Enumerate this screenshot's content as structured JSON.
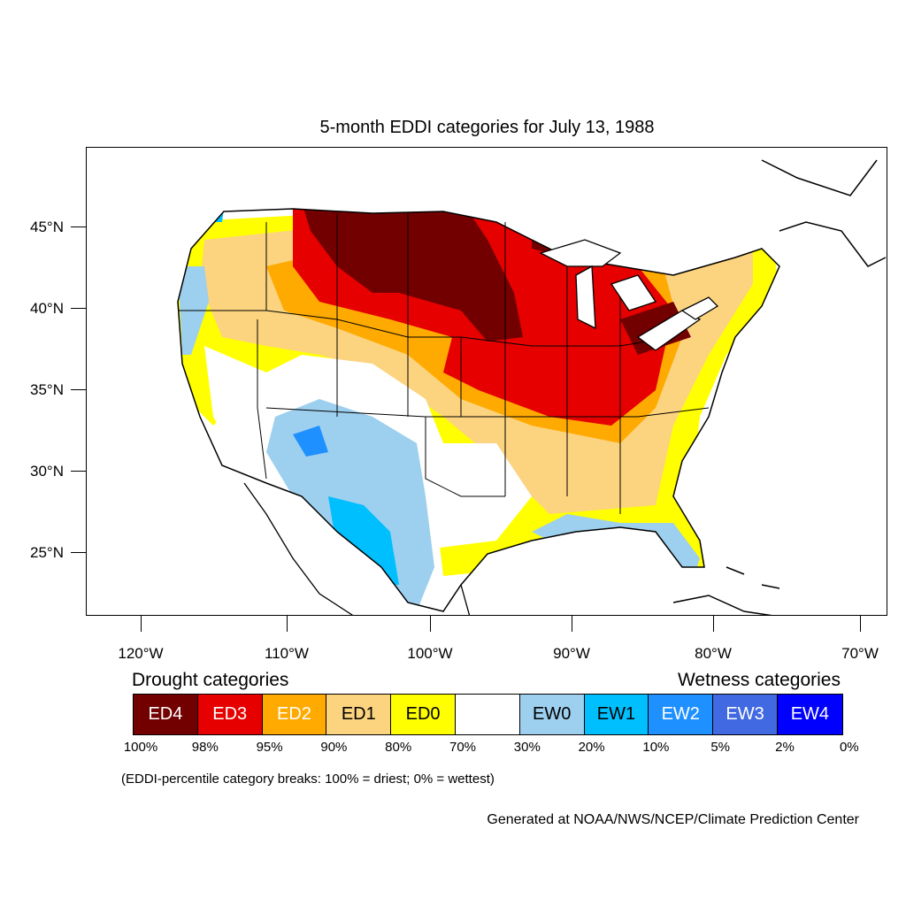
{
  "title": "5-month EDDI categories for July 13, 1988",
  "map": {
    "lat_labels": [
      "45°N",
      "40°N",
      "35°N",
      "30°N",
      "25°N"
    ],
    "lon_labels": [
      "120°W",
      "110°W",
      "100°W",
      "90°W",
      "80°W",
      "70°W"
    ],
    "region": "Contiguous United States"
  },
  "legend": {
    "drought_heading": "Drought categories",
    "wetness_heading": "Wetness categories",
    "categories": [
      {
        "label": "ED4",
        "color": "#730000",
        "text_color": "#ffffff"
      },
      {
        "label": "ED3",
        "color": "#e60000",
        "text_color": "#ffffff"
      },
      {
        "label": "ED2",
        "color": "#ffaa00",
        "text_color": "#ffffff"
      },
      {
        "label": "ED1",
        "color": "#fcd37f",
        "text_color": "#000000"
      },
      {
        "label": "ED0",
        "color": "#ffff00",
        "text_color": "#000000"
      },
      {
        "label": "",
        "color": "#ffffff",
        "text_color": "#000000"
      },
      {
        "label": "EW0",
        "color": "#9dcfee",
        "text_color": "#000000"
      },
      {
        "label": "EW1",
        "color": "#00bfff",
        "text_color": "#000000"
      },
      {
        "label": "EW2",
        "color": "#1e90ff",
        "text_color": "#ffffff"
      },
      {
        "label": "EW3",
        "color": "#4169e1",
        "text_color": "#ffffff"
      },
      {
        "label": "EW4",
        "color": "#0000ff",
        "text_color": "#ffffff"
      }
    ],
    "breaks": [
      "100%",
      "98%",
      "95%",
      "90%",
      "80%",
      "70%",
      "30%",
      "20%",
      "10%",
      "5%",
      "2%",
      "0%"
    ]
  },
  "note": "(EDDI-percentile category breaks: 100% = driest; 0% = wettest)",
  "credit": "Generated at NOAA/NWS/NCEP/Climate Prediction Center"
}
